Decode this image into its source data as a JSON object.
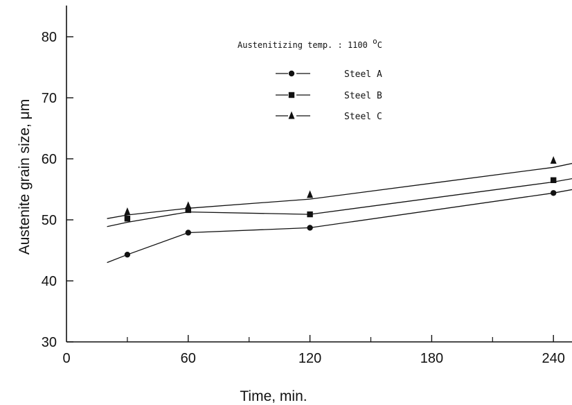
{
  "chart_data": {
    "type": "line",
    "title": "",
    "xlabel": "Time,  min.",
    "ylabel": "Austenite grain size, μm",
    "xlim": [
      0,
      250
    ],
    "ylim": [
      30,
      85
    ],
    "x_ticks": [
      0,
      60,
      120,
      180,
      240
    ],
    "x_minor_ticks": [
      30,
      90,
      150,
      210
    ],
    "y_ticks": [
      30,
      40,
      50,
      60,
      70,
      80
    ],
    "grid": false,
    "legend_position": "top-center",
    "annotation": {
      "text_main": "Austenitizing temp. : 1100 ",
      "text_sup": "o",
      "text_unit": "C"
    },
    "series": [
      {
        "name": "Steel A",
        "marker": "circle",
        "x": [
          30,
          60,
          120,
          240
        ],
        "y": [
          44.3,
          47.9,
          48.7,
          54.4
        ],
        "line": [
          [
            20,
            43.0
          ],
          [
            30,
            44.3
          ],
          [
            60,
            47.9
          ],
          [
            120,
            48.7
          ],
          [
            240,
            54.4
          ],
          [
            250,
            55.0
          ]
        ]
      },
      {
        "name": "Steel B",
        "marker": "square",
        "x": [
          30,
          60,
          120,
          240
        ],
        "y": [
          50.2,
          51.6,
          50.9,
          56.5
        ],
        "line": [
          [
            20,
            48.9
          ],
          [
            30,
            49.6
          ],
          [
            60,
            51.3
          ],
          [
            120,
            50.9
          ],
          [
            240,
            56.2
          ],
          [
            250,
            56.8
          ]
        ]
      },
      {
        "name": "Steel C",
        "marker": "triangle",
        "x": [
          30,
          60,
          120,
          240
        ],
        "y": [
          51.3,
          52.3,
          54.1,
          59.7
        ],
        "line": [
          [
            20,
            50.2
          ],
          [
            30,
            50.8
          ],
          [
            60,
            51.9
          ],
          [
            120,
            53.4
          ],
          [
            240,
            58.6
          ],
          [
            250,
            59.3
          ]
        ]
      }
    ]
  }
}
